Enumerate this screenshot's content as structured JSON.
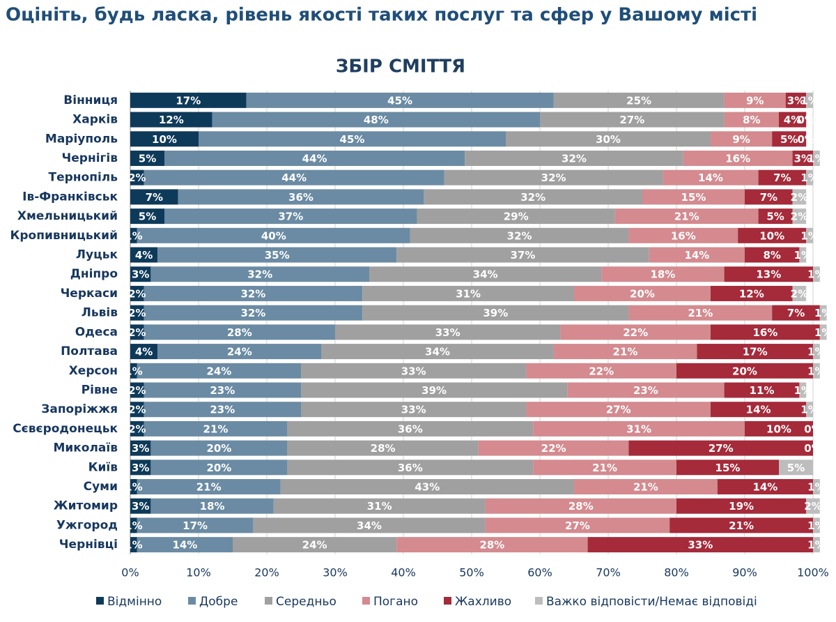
{
  "chart_data": {
    "type": "stacked-bar",
    "title": "Оцініть, будь ласка, рівень якості таких послуг та сфер у Вашому місті",
    "subtitle": "ЗБІР СМІТТЯ",
    "categories": [
      "Вінниця",
      "Харків",
      "Маріуполь",
      "Чернігів",
      "Тернопіль",
      "Ів-Франківськ",
      "Хмельницький",
      "Кропивницький",
      "Луцьк",
      "Дніпро",
      "Черкаси",
      "Львів",
      "Одеса",
      "Полтава",
      "Херсон",
      "Рівне",
      "Запоріжжя",
      "Сєвєродонецьк",
      "Миколаїв",
      "Київ",
      "Суми",
      "Житомир",
      "Ужгород",
      "Чернівці"
    ],
    "series": [
      {
        "name": "Відмінно",
        "color": "#0e3a5a",
        "values": [
          17,
          12,
          10,
          5,
          2,
          7,
          5,
          1,
          4,
          3,
          2,
          2,
          2,
          4,
          1,
          2,
          2,
          2,
          3,
          3,
          1,
          3,
          1,
          1
        ],
        "value_labels": [
          "17%",
          "12%",
          "10%",
          "5%",
          "2%",
          "7%",
          "5%",
          "1%",
          "4%",
          "3%",
          "2%",
          "2%",
          "2%",
          "4%",
          "1%",
          "2%",
          "2%",
          "2%",
          "3%",
          "3%",
          "1%",
          "3%",
          "1%",
          "1%"
        ]
      },
      {
        "name": "Добре",
        "color": "#6a8ba3",
        "values": [
          45,
          48,
          45,
          44,
          44,
          36,
          37,
          40,
          35,
          32,
          32,
          32,
          28,
          24,
          24,
          23,
          23,
          21,
          20,
          20,
          21,
          18,
          17,
          14
        ],
        "value_labels": [
          "45%",
          "48%",
          "45%",
          "44%",
          "44%",
          "36%",
          "37%",
          "40%",
          "35%",
          "32%",
          "32%",
          "32%",
          "28%",
          "24%",
          "24%",
          "23%",
          "23%",
          "21%",
          "20%",
          "20%",
          "21%",
          "18%",
          "17%",
          "14%"
        ]
      },
      {
        "name": "Середньо",
        "color": "#a0a0a0",
        "values": [
          25,
          27,
          30,
          32,
          32,
          32,
          29,
          32,
          37,
          34,
          31,
          39,
          33,
          34,
          33,
          39,
          33,
          36,
          28,
          36,
          43,
          31,
          34,
          24
        ],
        "value_labels": [
          "25%",
          "27%",
          "30%",
          "32%",
          "32%",
          "32%",
          "29%",
          "32%",
          "37%",
          "34%",
          "31%",
          "39%",
          "33%",
          "34%",
          "33%",
          "39%",
          "33%",
          "36%",
          "28%",
          "36%",
          "43%",
          "31%",
          "34%",
          "24%"
        ]
      },
      {
        "name": "Погано",
        "color": "#d48a8f",
        "values": [
          9,
          8,
          9,
          16,
          14,
          15,
          21,
          16,
          14,
          18,
          20,
          21,
          22,
          21,
          22,
          23,
          27,
          31,
          22,
          21,
          21,
          28,
          27,
          28
        ],
        "value_labels": [
          "9%",
          "8%",
          "9%",
          "16%",
          "14%",
          "15%",
          "21%",
          "16%",
          "14%",
          "18%",
          "20%",
          "21%",
          "22%",
          "21%",
          "22%",
          "23%",
          "27%",
          "31%",
          "22%",
          "21%",
          "21%",
          "28%",
          "27%",
          "28%"
        ]
      },
      {
        "name": "Жахливо",
        "color": "#a52a3a",
        "values": [
          3,
          4,
          5,
          3,
          7,
          7,
          5,
          10,
          8,
          13,
          12,
          7,
          16,
          17,
          20,
          11,
          14,
          10,
          27,
          15,
          14,
          19,
          21,
          33
        ],
        "value_labels": [
          "3%",
          "4%",
          "5%",
          "3%",
          "7%",
          "7%",
          "5%",
          "10%",
          "8%",
          "13%",
          "12%",
          "7%",
          "16%",
          "17%",
          "20%",
          "11%",
          "14%",
          "10%",
          "27%",
          "15%",
          "14%",
          "19%",
          "21%",
          "33%"
        ]
      },
      {
        "name": "Важко відповісти/Немає відповіді",
        "color": "#bdbdbd",
        "values": [
          1,
          0,
          0,
          1,
          1,
          2,
          2,
          1,
          1,
          1,
          2,
          1,
          1,
          1,
          1,
          1,
          1,
          0,
          0,
          5,
          1,
          2,
          1,
          1
        ],
        "value_labels": [
          "1%",
          "0%",
          "0%",
          "1%",
          "1%",
          "2%",
          "2%",
          "1%",
          "1%",
          "1%",
          "2%",
          "1%",
          "1%",
          "1%",
          "1%",
          "1%",
          "1%",
          "0%",
          "0%",
          "5%",
          "1%",
          "2%",
          "1%",
          "1%"
        ]
      }
    ],
    "xlim": [
      0,
      100
    ],
    "xticks": [
      {
        "value": 0,
        "label": "0%"
      },
      {
        "value": 10,
        "label": "10%"
      },
      {
        "value": 20,
        "label": "20%"
      },
      {
        "value": 30,
        "label": "30%"
      },
      {
        "value": 40,
        "label": "40%"
      },
      {
        "value": 50,
        "label": "50%"
      },
      {
        "value": 60,
        "label": "60%"
      },
      {
        "value": 70,
        "label": "70%"
      },
      {
        "value": 80,
        "label": "80%"
      },
      {
        "value": 90,
        "label": "90%"
      },
      {
        "value": 100,
        "label": "100%"
      }
    ],
    "grid": true
  }
}
